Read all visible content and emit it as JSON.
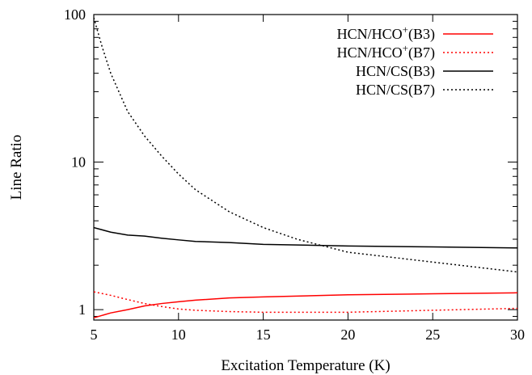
{
  "chart_data": {
    "type": "line",
    "xlabel": "Excitation Temperature (K)",
    "ylabel": "Line Ratio",
    "xlim": [
      5,
      30
    ],
    "ylim": [
      0.85,
      100
    ],
    "yscale": "log",
    "x_ticks": [
      5,
      10,
      15,
      20,
      25,
      30
    ],
    "x_tick_labels": [
      "5",
      "10",
      "15",
      "20",
      "25",
      "30"
    ],
    "y_ticks": [
      1,
      10,
      100
    ],
    "y_tick_labels": [
      "1",
      "10",
      "100"
    ],
    "grid": false,
    "legend_position": "top-right",
    "series": [
      {
        "name": "HCN/HCO+(B3)",
        "label_base": "HCN/HCO",
        "label_sup": "+",
        "label_suffix": "(B3)",
        "color": "#ff0000",
        "dash": "solid",
        "x": [
          5,
          6,
          7,
          8,
          9,
          10,
          11,
          13,
          15,
          20,
          25,
          30
        ],
        "y": [
          0.88,
          0.95,
          1.0,
          1.06,
          1.1,
          1.13,
          1.16,
          1.2,
          1.22,
          1.26,
          1.28,
          1.3
        ]
      },
      {
        "name": "HCN/HCO+(B7)",
        "label_base": "HCN/HCO",
        "label_sup": "+",
        "label_suffix": "(B7)",
        "color": "#ff0000",
        "dash": "dotted",
        "x": [
          5,
          6,
          7,
          8,
          9,
          10,
          11,
          13,
          15,
          20,
          25,
          30
        ],
        "y": [
          1.32,
          1.25,
          1.17,
          1.1,
          1.05,
          1.01,
          0.99,
          0.97,
          0.96,
          0.96,
          0.99,
          1.02
        ]
      },
      {
        "name": "HCN/CS(B3)",
        "label_base": "HCN/CS",
        "label_sup": "",
        "label_suffix": "(B3)",
        "color": "#000000",
        "dash": "solid",
        "x": [
          5,
          6,
          7,
          8,
          9,
          10,
          11,
          13,
          15,
          20,
          25,
          30
        ],
        "y": [
          3.6,
          3.35,
          3.2,
          3.15,
          3.05,
          2.97,
          2.9,
          2.85,
          2.77,
          2.7,
          2.66,
          2.62
        ]
      },
      {
        "name": "HCN/CS(B7)",
        "label_base": "HCN/CS",
        "label_sup": "",
        "label_suffix": "(B7)",
        "color": "#000000",
        "dash": "dotted",
        "x": [
          5,
          5.5,
          6,
          7,
          8,
          9,
          10,
          11,
          13,
          15,
          17,
          20,
          25,
          30
        ],
        "y": [
          95,
          60,
          40,
          22,
          15,
          11,
          8.3,
          6.5,
          4.6,
          3.6,
          3.0,
          2.45,
          2.1,
          1.8
        ]
      }
    ]
  }
}
